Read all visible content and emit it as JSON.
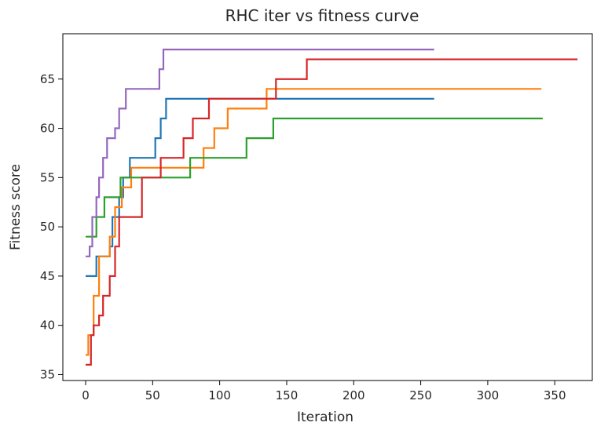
{
  "chart_data": {
    "type": "line",
    "title": "RHC iter vs fitness curve",
    "xlabel": "Iteration",
    "ylabel": "Fitness score",
    "xlim": [
      -17,
      378
    ],
    "ylim": [
      34.4,
      69.6
    ],
    "xticks": [
      0,
      50,
      100,
      150,
      200,
      250,
      300,
      350
    ],
    "yticks": [
      35,
      40,
      45,
      50,
      55,
      60,
      65
    ],
    "grid": false,
    "legend": "none",
    "series": [
      {
        "color": "#1f77b4",
        "step": [
          [
            0,
            45
          ],
          [
            8,
            47
          ],
          [
            18,
            48
          ],
          [
            20,
            51
          ],
          [
            25,
            53
          ],
          [
            28,
            55
          ],
          [
            33,
            57
          ],
          [
            52,
            59
          ],
          [
            56,
            61
          ],
          [
            60,
            63
          ],
          [
            260,
            63
          ]
        ]
      },
      {
        "color": "#ff7f0e",
        "step": [
          [
            0,
            37
          ],
          [
            2,
            39
          ],
          [
            6,
            43
          ],
          [
            10,
            47
          ],
          [
            18,
            49
          ],
          [
            22,
            52
          ],
          [
            27,
            54
          ],
          [
            34,
            56
          ],
          [
            88,
            58
          ],
          [
            96,
            60
          ],
          [
            106,
            62
          ],
          [
            135,
            64
          ],
          [
            340,
            64
          ]
        ]
      },
      {
        "color": "#2ca02c",
        "step": [
          [
            0,
            49
          ],
          [
            8,
            51
          ],
          [
            14,
            53
          ],
          [
            26,
            55
          ],
          [
            78,
            57
          ],
          [
            120,
            59
          ],
          [
            140,
            61
          ],
          [
            341,
            61
          ]
        ]
      },
      {
        "color": "#d62728",
        "step": [
          [
            0,
            36
          ],
          [
            4,
            39
          ],
          [
            6,
            40
          ],
          [
            10,
            41
          ],
          [
            13,
            43
          ],
          [
            18,
            45
          ],
          [
            22,
            48
          ],
          [
            25,
            51
          ],
          [
            42,
            55
          ],
          [
            56,
            57
          ],
          [
            73,
            59
          ],
          [
            80,
            61
          ],
          [
            92,
            63
          ],
          [
            142,
            65
          ],
          [
            165,
            67
          ],
          [
            367,
            67
          ]
        ]
      },
      {
        "color": "#9467bd",
        "step": [
          [
            0,
            47
          ],
          [
            3,
            48
          ],
          [
            5,
            51
          ],
          [
            8,
            53
          ],
          [
            10,
            55
          ],
          [
            13,
            57
          ],
          [
            16,
            59
          ],
          [
            22,
            60
          ],
          [
            25,
            62
          ],
          [
            30,
            64
          ],
          [
            55,
            66
          ],
          [
            58,
            68
          ],
          [
            260,
            68
          ]
        ]
      }
    ]
  }
}
